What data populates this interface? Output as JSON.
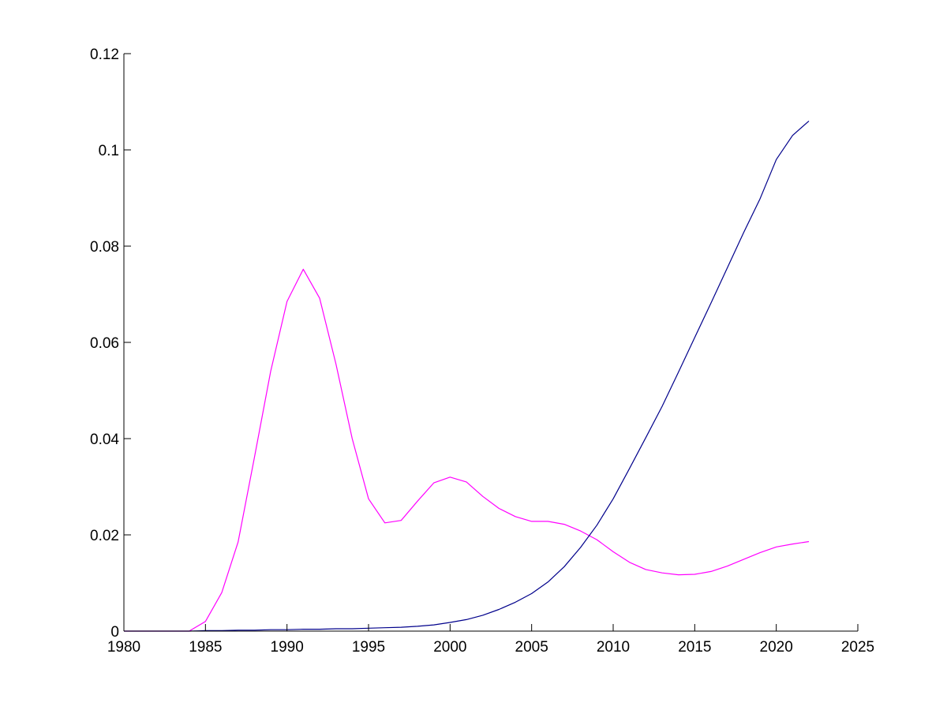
{
  "chart_data": {
    "type": "line",
    "title": "",
    "xlabel": "",
    "ylabel": "",
    "xlim": [
      1980,
      2025
    ],
    "ylim": [
      0,
      0.12
    ],
    "x_ticks": [
      "1980",
      "1985",
      "1990",
      "1995",
      "2000",
      "2005",
      "2010",
      "2015",
      "2020",
      "2025"
    ],
    "y_ticks": [
      "0",
      "0.02",
      "0.04",
      "0.06",
      "0.08",
      "0.1",
      "0.12"
    ],
    "grid": false,
    "legend": "none",
    "series": [
      {
        "color": "#ff00ff",
        "x": [
          1980,
          1981,
          1982,
          1983,
          1984,
          1985,
          1986,
          1987,
          1988,
          1989,
          1990,
          1991,
          1992,
          1993,
          1994,
          1995,
          1996,
          1997,
          1998,
          1999,
          2000,
          2001,
          2002,
          2003,
          2004,
          2005,
          2006,
          2007,
          2008,
          2009,
          2010,
          2011,
          2012,
          2013,
          2014,
          2015,
          2016,
          2017,
          2018,
          2019,
          2020,
          2021,
          2022
        ],
        "y": [
          0,
          0,
          0,
          0,
          0,
          0.002,
          0.008,
          0.0185,
          0.036,
          0.054,
          0.0685,
          0.0752,
          0.0692,
          0.0555,
          0.04,
          0.0275,
          0.0225,
          0.023,
          0.027,
          0.0308,
          0.032,
          0.031,
          0.028,
          0.0255,
          0.0238,
          0.0228,
          0.0228,
          0.0222,
          0.0208,
          0.019,
          0.0165,
          0.0143,
          0.0128,
          0.0121,
          0.0117,
          0.0118,
          0.0124,
          0.0135,
          0.0149,
          0.0163,
          0.0175,
          0.0181,
          0.0186
        ]
      },
      {
        "color": "#00008b",
        "x": [
          1980,
          1981,
          1982,
          1983,
          1984,
          1985,
          1986,
          1987,
          1988,
          1989,
          1990,
          1991,
          1992,
          1993,
          1994,
          1995,
          1996,
          1997,
          1998,
          1999,
          2000,
          2001,
          2002,
          2003,
          2004,
          2005,
          2006,
          2007,
          2008,
          2009,
          2010,
          2011,
          2012,
          2013,
          2014,
          2015,
          2016,
          2017,
          2018,
          2019,
          2020,
          2021,
          2022
        ],
        "y": [
          0,
          0,
          0,
          0,
          0,
          0.0001,
          0.0001,
          0.0002,
          0.0002,
          0.0003,
          0.0003,
          0.0004,
          0.0004,
          0.0005,
          0.0005,
          0.0006,
          0.0007,
          0.0008,
          0.001,
          0.0013,
          0.0018,
          0.0024,
          0.0033,
          0.0045,
          0.006,
          0.0078,
          0.0102,
          0.0134,
          0.0174,
          0.022,
          0.0275,
          0.0338,
          0.0402,
          0.0467,
          0.0538,
          0.061,
          0.0682,
          0.0755,
          0.0828,
          0.0898,
          0.098,
          0.103,
          0.106
        ]
      }
    ]
  }
}
